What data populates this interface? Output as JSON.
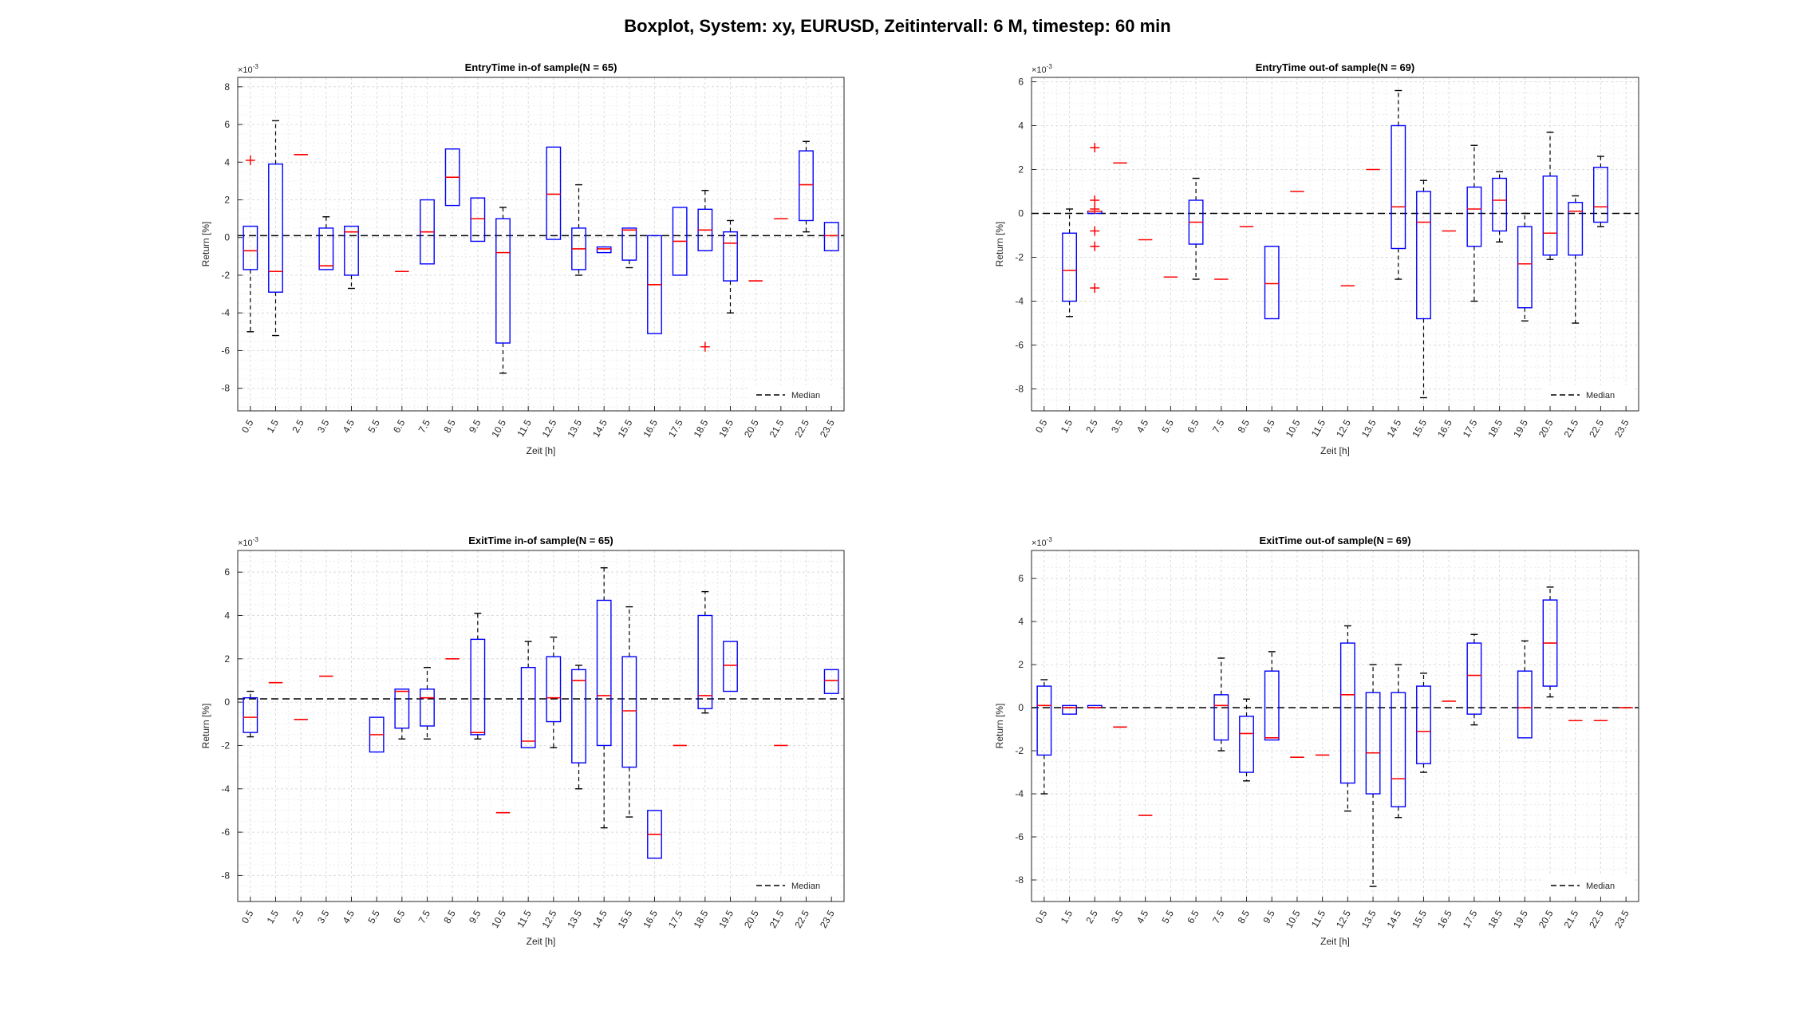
{
  "figure_title": "Boxplot, System: xy, EURUSD, Zeitintervall: 6 M, timestep: 60 min",
  "colors": {
    "box": "#0000ff",
    "median": "#ff0000",
    "whisker": "#000000",
    "outlier": "#ff0000",
    "grid": "#dcdcdc",
    "ref_line": "#000000"
  },
  "chart_data": [
    {
      "type": "boxplot",
      "title": "EntryTime in-of sample(N = 65)",
      "xlabel": "Zeit [h]",
      "ylabel": "Return [%]",
      "y_exponent": "×10",
      "y_exponent_power": "-3",
      "ylim": [
        -9.2,
        8.5
      ],
      "yticks": [
        "-8",
        "-6",
        "-4",
        "-2",
        "0",
        "2",
        "4",
        "6",
        "8"
      ],
      "grid": true,
      "categories": [
        "0.5",
        "1.5",
        "2.5",
        "3.5",
        "4.5",
        "5.5",
        "6.5",
        "7.5",
        "8.5",
        "9.5",
        "10.5",
        "11.5",
        "12.5",
        "13.5",
        "14.5",
        "15.5",
        "16.5",
        "17.5",
        "18.5",
        "19.5",
        "20.5",
        "21.5",
        "22.5",
        "23.5"
      ],
      "median_line": 0.1,
      "legend": {
        "label": "Median",
        "position": "bottom-right"
      },
      "boxes": [
        {
          "x": "0.5",
          "q1": -1.7,
          "median": -0.7,
          "q3": 0.6,
          "lo": -5.0,
          "hi": 0.6,
          "outliers": [
            4.1
          ]
        },
        {
          "x": "1.5",
          "q1": -2.9,
          "median": -1.8,
          "q3": 3.9,
          "lo": -5.2,
          "hi": 6.2,
          "outliers": []
        },
        {
          "x": "2.5",
          "q1": 4.4,
          "median": 4.4,
          "q3": 4.4,
          "lo": 4.4,
          "hi": 4.4,
          "outliers": []
        },
        {
          "x": "3.5",
          "q1": -1.7,
          "median": -1.5,
          "q3": 0.5,
          "lo": -1.7,
          "hi": 1.1,
          "outliers": []
        },
        {
          "x": "4.5",
          "q1": -2.0,
          "median": 0.3,
          "q3": 0.6,
          "lo": -2.7,
          "hi": 0.6,
          "outliers": []
        },
        {
          "x": "6.5",
          "q1": -1.8,
          "median": -1.8,
          "q3": -1.8,
          "lo": -1.8,
          "hi": -1.8,
          "outliers": []
        },
        {
          "x": "7.5",
          "q1": -1.4,
          "median": 0.3,
          "q3": 2.0,
          "lo": -1.4,
          "hi": 2.0,
          "outliers": []
        },
        {
          "x": "8.5",
          "q1": 1.7,
          "median": 3.2,
          "q3": 4.7,
          "lo": 1.7,
          "hi": 4.7,
          "outliers": []
        },
        {
          "x": "9.5",
          "q1": -0.2,
          "median": 1.0,
          "q3": 2.1,
          "lo": -0.2,
          "hi": 2.1,
          "outliers": []
        },
        {
          "x": "10.5",
          "q1": -5.6,
          "median": -0.8,
          "q3": 1.0,
          "lo": -7.2,
          "hi": 1.6,
          "outliers": []
        },
        {
          "x": "12.5",
          "q1": -0.1,
          "median": 2.3,
          "q3": 4.8,
          "lo": -0.1,
          "hi": 4.8,
          "outliers": []
        },
        {
          "x": "13.5",
          "q1": -1.7,
          "median": -0.6,
          "q3": 0.5,
          "lo": -2.0,
          "hi": 2.8,
          "outliers": []
        },
        {
          "x": "14.5",
          "q1": -0.8,
          "median": -0.6,
          "q3": -0.5,
          "lo": -0.8,
          "hi": -0.5,
          "outliers": []
        },
        {
          "x": "15.5",
          "q1": -1.2,
          "median": 0.4,
          "q3": 0.5,
          "lo": -1.6,
          "hi": 0.5,
          "outliers": []
        },
        {
          "x": "16.5",
          "q1": -5.1,
          "median": -2.5,
          "q3": 0.1,
          "lo": -5.1,
          "hi": 0.1,
          "outliers": []
        },
        {
          "x": "17.5",
          "q1": -2.0,
          "median": -0.2,
          "q3": 1.6,
          "lo": -2.0,
          "hi": 1.6,
          "outliers": []
        },
        {
          "x": "18.5",
          "q1": -0.7,
          "median": 0.4,
          "q3": 1.5,
          "lo": -0.7,
          "hi": 2.5,
          "outliers": [
            -5.8
          ]
        },
        {
          "x": "19.5",
          "q1": -2.3,
          "median": -0.3,
          "q3": 0.3,
          "lo": -4.0,
          "hi": 0.9,
          "outliers": []
        },
        {
          "x": "20.5",
          "q1": -2.3,
          "median": -2.3,
          "q3": -2.3,
          "lo": -2.3,
          "hi": -2.3,
          "outliers": []
        },
        {
          "x": "21.5",
          "q1": 1.0,
          "median": 1.0,
          "q3": 1.0,
          "lo": 1.0,
          "hi": 1.0,
          "outliers": []
        },
        {
          "x": "22.5",
          "q1": 0.9,
          "median": 2.8,
          "q3": 4.6,
          "lo": 0.3,
          "hi": 5.1,
          "outliers": []
        },
        {
          "x": "23.5",
          "q1": -0.7,
          "median": 0.1,
          "q3": 0.8,
          "lo": -0.7,
          "hi": 0.8,
          "outliers": []
        }
      ]
    },
    {
      "type": "boxplot",
      "title": "EntryTime out-of sample(N = 69)",
      "xlabel": "Zeit [h]",
      "ylabel": "Return [%]",
      "y_exponent": "×10",
      "y_exponent_power": "-3",
      "ylim": [
        -9.0,
        6.2
      ],
      "yticks": [
        "-8",
        "-6",
        "-4",
        "-2",
        "0",
        "2",
        "4",
        "6"
      ],
      "grid": true,
      "categories": [
        "0.5",
        "1.5",
        "2.5",
        "3.5",
        "4.5",
        "5.5",
        "6.5",
        "7.5",
        "8.5",
        "9.5",
        "10.5",
        "11.5",
        "12.5",
        "13.5",
        "14.5",
        "15.5",
        "16.5",
        "17.5",
        "18.5",
        "19.5",
        "20.5",
        "21.5",
        "22.5",
        "23.5"
      ],
      "median_line": 0.0,
      "legend": {
        "label": "Median",
        "position": "bottom-right"
      },
      "boxes": [
        {
          "x": "1.5",
          "q1": -4.0,
          "median": -2.6,
          "q3": -0.9,
          "lo": -4.7,
          "hi": 0.2,
          "outliers": []
        },
        {
          "x": "2.5",
          "q1": 0.0,
          "median": 0.1,
          "q3": 0.1,
          "lo": 0.0,
          "hi": 0.1,
          "outliers": [
            3.0,
            0.6,
            0.2,
            -0.8,
            -1.5,
            -3.4
          ]
        },
        {
          "x": "3.5",
          "q1": 2.3,
          "median": 2.3,
          "q3": 2.3,
          "lo": 2.3,
          "hi": 2.3,
          "outliers": []
        },
        {
          "x": "4.5",
          "q1": -1.2,
          "median": -1.2,
          "q3": -1.2,
          "lo": -1.2,
          "hi": -1.2,
          "outliers": []
        },
        {
          "x": "5.5",
          "q1": -2.9,
          "median": -2.9,
          "q3": -2.9,
          "lo": -2.9,
          "hi": -2.9,
          "outliers": []
        },
        {
          "x": "6.5",
          "q1": -1.4,
          "median": -0.4,
          "q3": 0.6,
          "lo": -3.0,
          "hi": 1.6,
          "outliers": []
        },
        {
          "x": "7.5",
          "q1": -3.0,
          "median": -3.0,
          "q3": -3.0,
          "lo": -3.0,
          "hi": -3.0,
          "outliers": []
        },
        {
          "x": "8.5",
          "q1": -0.6,
          "median": -0.6,
          "q3": -0.6,
          "lo": -0.6,
          "hi": -0.6,
          "outliers": []
        },
        {
          "x": "9.5",
          "q1": -4.8,
          "median": -3.2,
          "q3": -1.5,
          "lo": -4.8,
          "hi": -1.5,
          "outliers": []
        },
        {
          "x": "10.5",
          "q1": 1.0,
          "median": 1.0,
          "q3": 1.0,
          "lo": 1.0,
          "hi": 1.0,
          "outliers": []
        },
        {
          "x": "12.5",
          "q1": -3.3,
          "median": -3.3,
          "q3": -3.3,
          "lo": -3.3,
          "hi": -3.3,
          "outliers": []
        },
        {
          "x": "13.5",
          "q1": 2.0,
          "median": 2.0,
          "q3": 2.0,
          "lo": 2.0,
          "hi": 2.0,
          "outliers": []
        },
        {
          "x": "14.5",
          "q1": -1.6,
          "median": 0.3,
          "q3": 4.0,
          "lo": -3.0,
          "hi": 5.6,
          "outliers": []
        },
        {
          "x": "15.5",
          "q1": -4.8,
          "median": -0.4,
          "q3": 1.0,
          "lo": -8.4,
          "hi": 1.5,
          "outliers": []
        },
        {
          "x": "16.5",
          "q1": -0.8,
          "median": -0.8,
          "q3": -0.8,
          "lo": -0.8,
          "hi": -0.8,
          "outliers": []
        },
        {
          "x": "17.5",
          "q1": -1.5,
          "median": 0.2,
          "q3": 1.2,
          "lo": -4.0,
          "hi": 3.1,
          "outliers": []
        },
        {
          "x": "18.5",
          "q1": -0.8,
          "median": 0.6,
          "q3": 1.6,
          "lo": -1.3,
          "hi": 1.9,
          "outliers": []
        },
        {
          "x": "19.5",
          "q1": -4.3,
          "median": -2.3,
          "q3": -0.6,
          "lo": -4.9,
          "hi": 0.0,
          "outliers": []
        },
        {
          "x": "20.5",
          "q1": -1.9,
          "median": -0.9,
          "q3": 1.7,
          "lo": -2.1,
          "hi": 3.7,
          "outliers": []
        },
        {
          "x": "21.5",
          "q1": -1.9,
          "median": 0.1,
          "q3": 0.5,
          "lo": -5.0,
          "hi": 0.8,
          "outliers": []
        },
        {
          "x": "22.5",
          "q1": -0.4,
          "median": 0.3,
          "q3": 2.1,
          "lo": -0.6,
          "hi": 2.6,
          "outliers": []
        }
      ]
    },
    {
      "type": "boxplot",
      "title": "ExitTime in-of sample(N = 65)",
      "xlabel": "Zeit [h]",
      "ylabel": "Return [%]",
      "y_exponent": "×10",
      "y_exponent_power": "-3",
      "ylim": [
        -9.2,
        7.0
      ],
      "yticks": [
        "-8",
        "-6",
        "-4",
        "-2",
        "0",
        "2",
        "4",
        "6"
      ],
      "grid": true,
      "categories": [
        "0.5",
        "1.5",
        "2.5",
        "3.5",
        "4.5",
        "5.5",
        "6.5",
        "7.5",
        "8.5",
        "9.5",
        "10.5",
        "11.5",
        "12.5",
        "13.5",
        "14.5",
        "15.5",
        "16.5",
        "17.5",
        "18.5",
        "19.5",
        "20.5",
        "21.5",
        "22.5",
        "23.5"
      ],
      "median_line": 0.15,
      "legend": {
        "label": "Median",
        "position": "bottom-right"
      },
      "boxes": [
        {
          "x": "0.5",
          "q1": -1.4,
          "median": -0.7,
          "q3": 0.2,
          "lo": -1.6,
          "hi": 0.5,
          "outliers": []
        },
        {
          "x": "1.5",
          "q1": 0.9,
          "median": 0.9,
          "q3": 0.9,
          "lo": 0.9,
          "hi": 0.9,
          "outliers": []
        },
        {
          "x": "2.5",
          "q1": -0.8,
          "median": -0.8,
          "q3": -0.8,
          "lo": -0.8,
          "hi": -0.8,
          "outliers": []
        },
        {
          "x": "3.5",
          "q1": 1.2,
          "median": 1.2,
          "q3": 1.2,
          "lo": 1.2,
          "hi": 1.2,
          "outliers": []
        },
        {
          "x": "5.5",
          "q1": -2.3,
          "median": -1.5,
          "q3": -0.7,
          "lo": -2.3,
          "hi": -0.7,
          "outliers": []
        },
        {
          "x": "6.5",
          "q1": -1.2,
          "median": 0.5,
          "q3": 0.6,
          "lo": -1.7,
          "hi": 0.6,
          "outliers": []
        },
        {
          "x": "7.5",
          "q1": -1.1,
          "median": 0.2,
          "q3": 0.6,
          "lo": -1.7,
          "hi": 1.6,
          "outliers": []
        },
        {
          "x": "8.5",
          "q1": 2.0,
          "median": 2.0,
          "q3": 2.0,
          "lo": 2.0,
          "hi": 2.0,
          "outliers": []
        },
        {
          "x": "9.5",
          "q1": -1.5,
          "median": -1.4,
          "q3": 2.9,
          "lo": -1.7,
          "hi": 4.1,
          "outliers": []
        },
        {
          "x": "10.5",
          "q1": -5.1,
          "median": -5.1,
          "q3": -5.1,
          "lo": -5.1,
          "hi": -5.1,
          "outliers": []
        },
        {
          "x": "11.5",
          "q1": -2.1,
          "median": -1.8,
          "q3": 1.6,
          "lo": -2.1,
          "hi": 2.8,
          "outliers": []
        },
        {
          "x": "12.5",
          "q1": -0.9,
          "median": 0.2,
          "q3": 2.1,
          "lo": -2.1,
          "hi": 3.0,
          "outliers": []
        },
        {
          "x": "13.5",
          "q1": -2.8,
          "median": 1.0,
          "q3": 1.5,
          "lo": -4.0,
          "hi": 1.7,
          "outliers": []
        },
        {
          "x": "14.5",
          "q1": -2.0,
          "median": 0.3,
          "q3": 4.7,
          "lo": -5.8,
          "hi": 6.2,
          "outliers": []
        },
        {
          "x": "15.5",
          "q1": -3.0,
          "median": -0.4,
          "q3": 2.1,
          "lo": -5.3,
          "hi": 4.4,
          "outliers": []
        },
        {
          "x": "16.5",
          "q1": -7.2,
          "median": -6.1,
          "q3": -5.0,
          "lo": -7.2,
          "hi": -5.0,
          "outliers": []
        },
        {
          "x": "17.5",
          "q1": -2.0,
          "median": -2.0,
          "q3": -2.0,
          "lo": -2.0,
          "hi": -2.0,
          "outliers": []
        },
        {
          "x": "18.5",
          "q1": -0.3,
          "median": 0.3,
          "q3": 4.0,
          "lo": -0.5,
          "hi": 5.1,
          "outliers": []
        },
        {
          "x": "19.5",
          "q1": 0.5,
          "median": 1.7,
          "q3": 2.8,
          "lo": 0.5,
          "hi": 2.8,
          "outliers": []
        },
        {
          "x": "21.5",
          "q1": -2.0,
          "median": -2.0,
          "q3": -2.0,
          "lo": -2.0,
          "hi": -2.0,
          "outliers": []
        },
        {
          "x": "23.5",
          "q1": 0.4,
          "median": 1.0,
          "q3": 1.5,
          "lo": 0.4,
          "hi": 1.5,
          "outliers": []
        }
      ]
    },
    {
      "type": "boxplot",
      "title": "ExitTime out-of sample(N = 69)",
      "xlabel": "Zeit [h]",
      "ylabel": "Return [%]",
      "y_exponent": "×10",
      "y_exponent_power": "-3",
      "ylim": [
        -9.0,
        7.3
      ],
      "yticks": [
        "-8",
        "-6",
        "-4",
        "-2",
        "0",
        "2",
        "4",
        "6"
      ],
      "grid": true,
      "categories": [
        "0.5",
        "1.5",
        "2.5",
        "3.5",
        "4.5",
        "5.5",
        "6.5",
        "7.5",
        "8.5",
        "9.5",
        "10.5",
        "11.5",
        "12.5",
        "13.5",
        "14.5",
        "15.5",
        "16.5",
        "17.5",
        "18.5",
        "19.5",
        "20.5",
        "21.5",
        "22.5",
        "23.5"
      ],
      "median_line": 0.0,
      "legend": {
        "label": "Median",
        "position": "bottom-right"
      },
      "boxes": [
        {
          "x": "0.5",
          "q1": -2.2,
          "median": 0.1,
          "q3": 1.0,
          "lo": -4.0,
          "hi": 1.3,
          "outliers": []
        },
        {
          "x": "1.5",
          "q1": -0.3,
          "median": 0.0,
          "q3": 0.1,
          "lo": -0.3,
          "hi": 0.1,
          "outliers": []
        },
        {
          "x": "2.5",
          "q1": 0.0,
          "median": 0.0,
          "q3": 0.1,
          "lo": 0.0,
          "hi": 0.1,
          "outliers": []
        },
        {
          "x": "3.5",
          "q1": -0.9,
          "median": -0.9,
          "q3": -0.9,
          "lo": -0.9,
          "hi": -0.9,
          "outliers": []
        },
        {
          "x": "4.5",
          "q1": -5.0,
          "median": -5.0,
          "q3": -5.0,
          "lo": -5.0,
          "hi": -5.0,
          "outliers": []
        },
        {
          "x": "7.5",
          "q1": -1.5,
          "median": 0.1,
          "q3": 0.6,
          "lo": -2.0,
          "hi": 2.3,
          "outliers": []
        },
        {
          "x": "8.5",
          "q1": -3.0,
          "median": -1.2,
          "q3": -0.4,
          "lo": -3.4,
          "hi": 0.4,
          "outliers": []
        },
        {
          "x": "9.5",
          "q1": -1.5,
          "median": -1.4,
          "q3": 1.7,
          "lo": -1.5,
          "hi": 2.6,
          "outliers": []
        },
        {
          "x": "10.5",
          "q1": -2.3,
          "median": -2.3,
          "q3": -2.3,
          "lo": -2.3,
          "hi": -2.3,
          "outliers": []
        },
        {
          "x": "11.5",
          "q1": -2.2,
          "median": -2.2,
          "q3": -2.2,
          "lo": -2.2,
          "hi": -2.2,
          "outliers": []
        },
        {
          "x": "12.5",
          "q1": -3.5,
          "median": 0.6,
          "q3": 3.0,
          "lo": -4.8,
          "hi": 3.8,
          "outliers": []
        },
        {
          "x": "13.5",
          "q1": -4.0,
          "median": -2.1,
          "q3": 0.7,
          "lo": -8.3,
          "hi": 2.0,
          "outliers": []
        },
        {
          "x": "14.5",
          "q1": -4.6,
          "median": -3.3,
          "q3": 0.7,
          "lo": -5.1,
          "hi": 2.0,
          "outliers": []
        },
        {
          "x": "15.5",
          "q1": -2.6,
          "median": -1.1,
          "q3": 1.0,
          "lo": -3.0,
          "hi": 1.6,
          "outliers": []
        },
        {
          "x": "16.5",
          "q1": 0.3,
          "median": 0.3,
          "q3": 0.3,
          "lo": 0.3,
          "hi": 0.3,
          "outliers": []
        },
        {
          "x": "17.5",
          "q1": -0.3,
          "median": 1.5,
          "q3": 3.0,
          "lo": -0.8,
          "hi": 3.4,
          "outliers": []
        },
        {
          "x": "19.5",
          "q1": -1.4,
          "median": 0.0,
          "q3": 1.7,
          "lo": -1.4,
          "hi": 3.1,
          "outliers": []
        },
        {
          "x": "20.5",
          "q1": 1.0,
          "median": 3.0,
          "q3": 5.0,
          "lo": 0.5,
          "hi": 5.6,
          "outliers": []
        },
        {
          "x": "21.5",
          "q1": -0.6,
          "median": -0.6,
          "q3": -0.6,
          "lo": -0.6,
          "hi": -0.6,
          "outliers": []
        },
        {
          "x": "22.5",
          "q1": -0.6,
          "median": -0.6,
          "q3": -0.6,
          "lo": -0.6,
          "hi": -0.6,
          "outliers": []
        },
        {
          "x": "23.5",
          "q1": 0.0,
          "median": 0.0,
          "q3": 0.0,
          "lo": 0.0,
          "hi": 0.0,
          "outliers": []
        }
      ]
    }
  ]
}
